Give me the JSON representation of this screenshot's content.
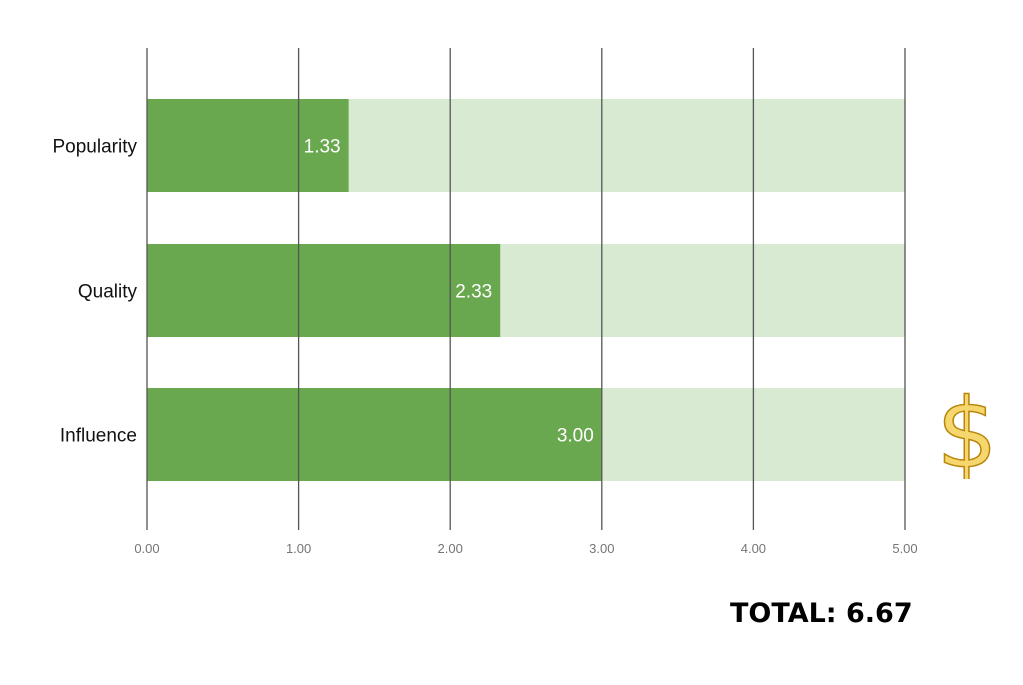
{
  "chart_data": {
    "type": "bar",
    "orientation": "horizontal",
    "categories": [
      "Popularity",
      "Quality",
      "Influence"
    ],
    "series": [
      {
        "values": [
          1.33,
          2.33,
          3.0
        ]
      }
    ],
    "max_track_value": 5,
    "value_labels": [
      "1.33",
      "2.33",
      "3.00"
    ],
    "xlim": [
      0,
      5
    ],
    "x_ticks": [
      0,
      1,
      2,
      3,
      4,
      5
    ],
    "x_tick_labels": [
      "0.00",
      "1.00",
      "2.00",
      "3.00",
      "4.00",
      "5.00"
    ],
    "grid": true,
    "title": "",
    "xlabel": "",
    "ylabel": ""
  },
  "colors": {
    "bar_fill": "#6aa84f",
    "track_fill": "#d9ead3",
    "grid_line": "#555555",
    "dollar_fill": "#f5d76e",
    "dollar_stroke": "#b8860b"
  },
  "total_label": "TOTAL: 6.67",
  "icons": {
    "currency": "dollar-sign-icon"
  }
}
